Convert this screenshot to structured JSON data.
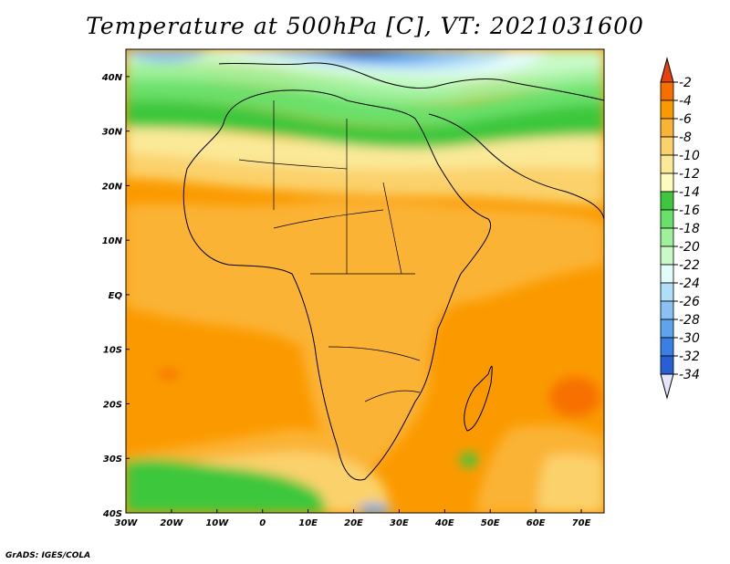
{
  "title": "Temperature at 500hPa [C], VT: 2021031600",
  "credit": "GrADS: IGES/COLA",
  "map": {
    "lon_range": [
      -30,
      75
    ],
    "lat_range": [
      -40,
      45
    ],
    "lon_ticks": [
      {
        "value": -30,
        "label": "30W"
      },
      {
        "value": -20,
        "label": "20W"
      },
      {
        "value": -10,
        "label": "10W"
      },
      {
        "value": 0,
        "label": "0"
      },
      {
        "value": 10,
        "label": "10E"
      },
      {
        "value": 20,
        "label": "20E"
      },
      {
        "value": 30,
        "label": "30E"
      },
      {
        "value": 40,
        "label": "40E"
      },
      {
        "value": 50,
        "label": "50E"
      },
      {
        "value": 60,
        "label": "60E"
      },
      {
        "value": 70,
        "label": "70E"
      }
    ],
    "lat_ticks": [
      {
        "value": 40,
        "label": "40N"
      },
      {
        "value": 30,
        "label": "30N"
      },
      {
        "value": 20,
        "label": "20N"
      },
      {
        "value": 10,
        "label": "10N"
      },
      {
        "value": 0,
        "label": "EQ"
      },
      {
        "value": -10,
        "label": "10S"
      },
      {
        "value": -20,
        "label": "20S"
      },
      {
        "value": -30,
        "label": "30S"
      },
      {
        "value": -40,
        "label": "40S"
      }
    ]
  },
  "colorbar": {
    "labels": [
      "-2",
      "-4",
      "-6",
      "-8",
      "-10",
      "-12",
      "-14",
      "-16",
      "-18",
      "-20",
      "-22",
      "-24",
      "-26",
      "-28",
      "-30",
      "-32",
      "-34"
    ],
    "colors": [
      "#e6420a",
      "#f76f00",
      "#fb9a00",
      "#fbb336",
      "#fbd16c",
      "#fbe998",
      "#fdfbbd",
      "#3ec73e",
      "#6ae06a",
      "#9ef09a",
      "#c8fac8",
      "#e2fbfb",
      "#b0ddf8",
      "#8ac0f4",
      "#5ea4ec",
      "#3a7fe4",
      "#2660d4",
      "#1240b4",
      "#0a2088",
      "#e6e6fa"
    ]
  }
}
